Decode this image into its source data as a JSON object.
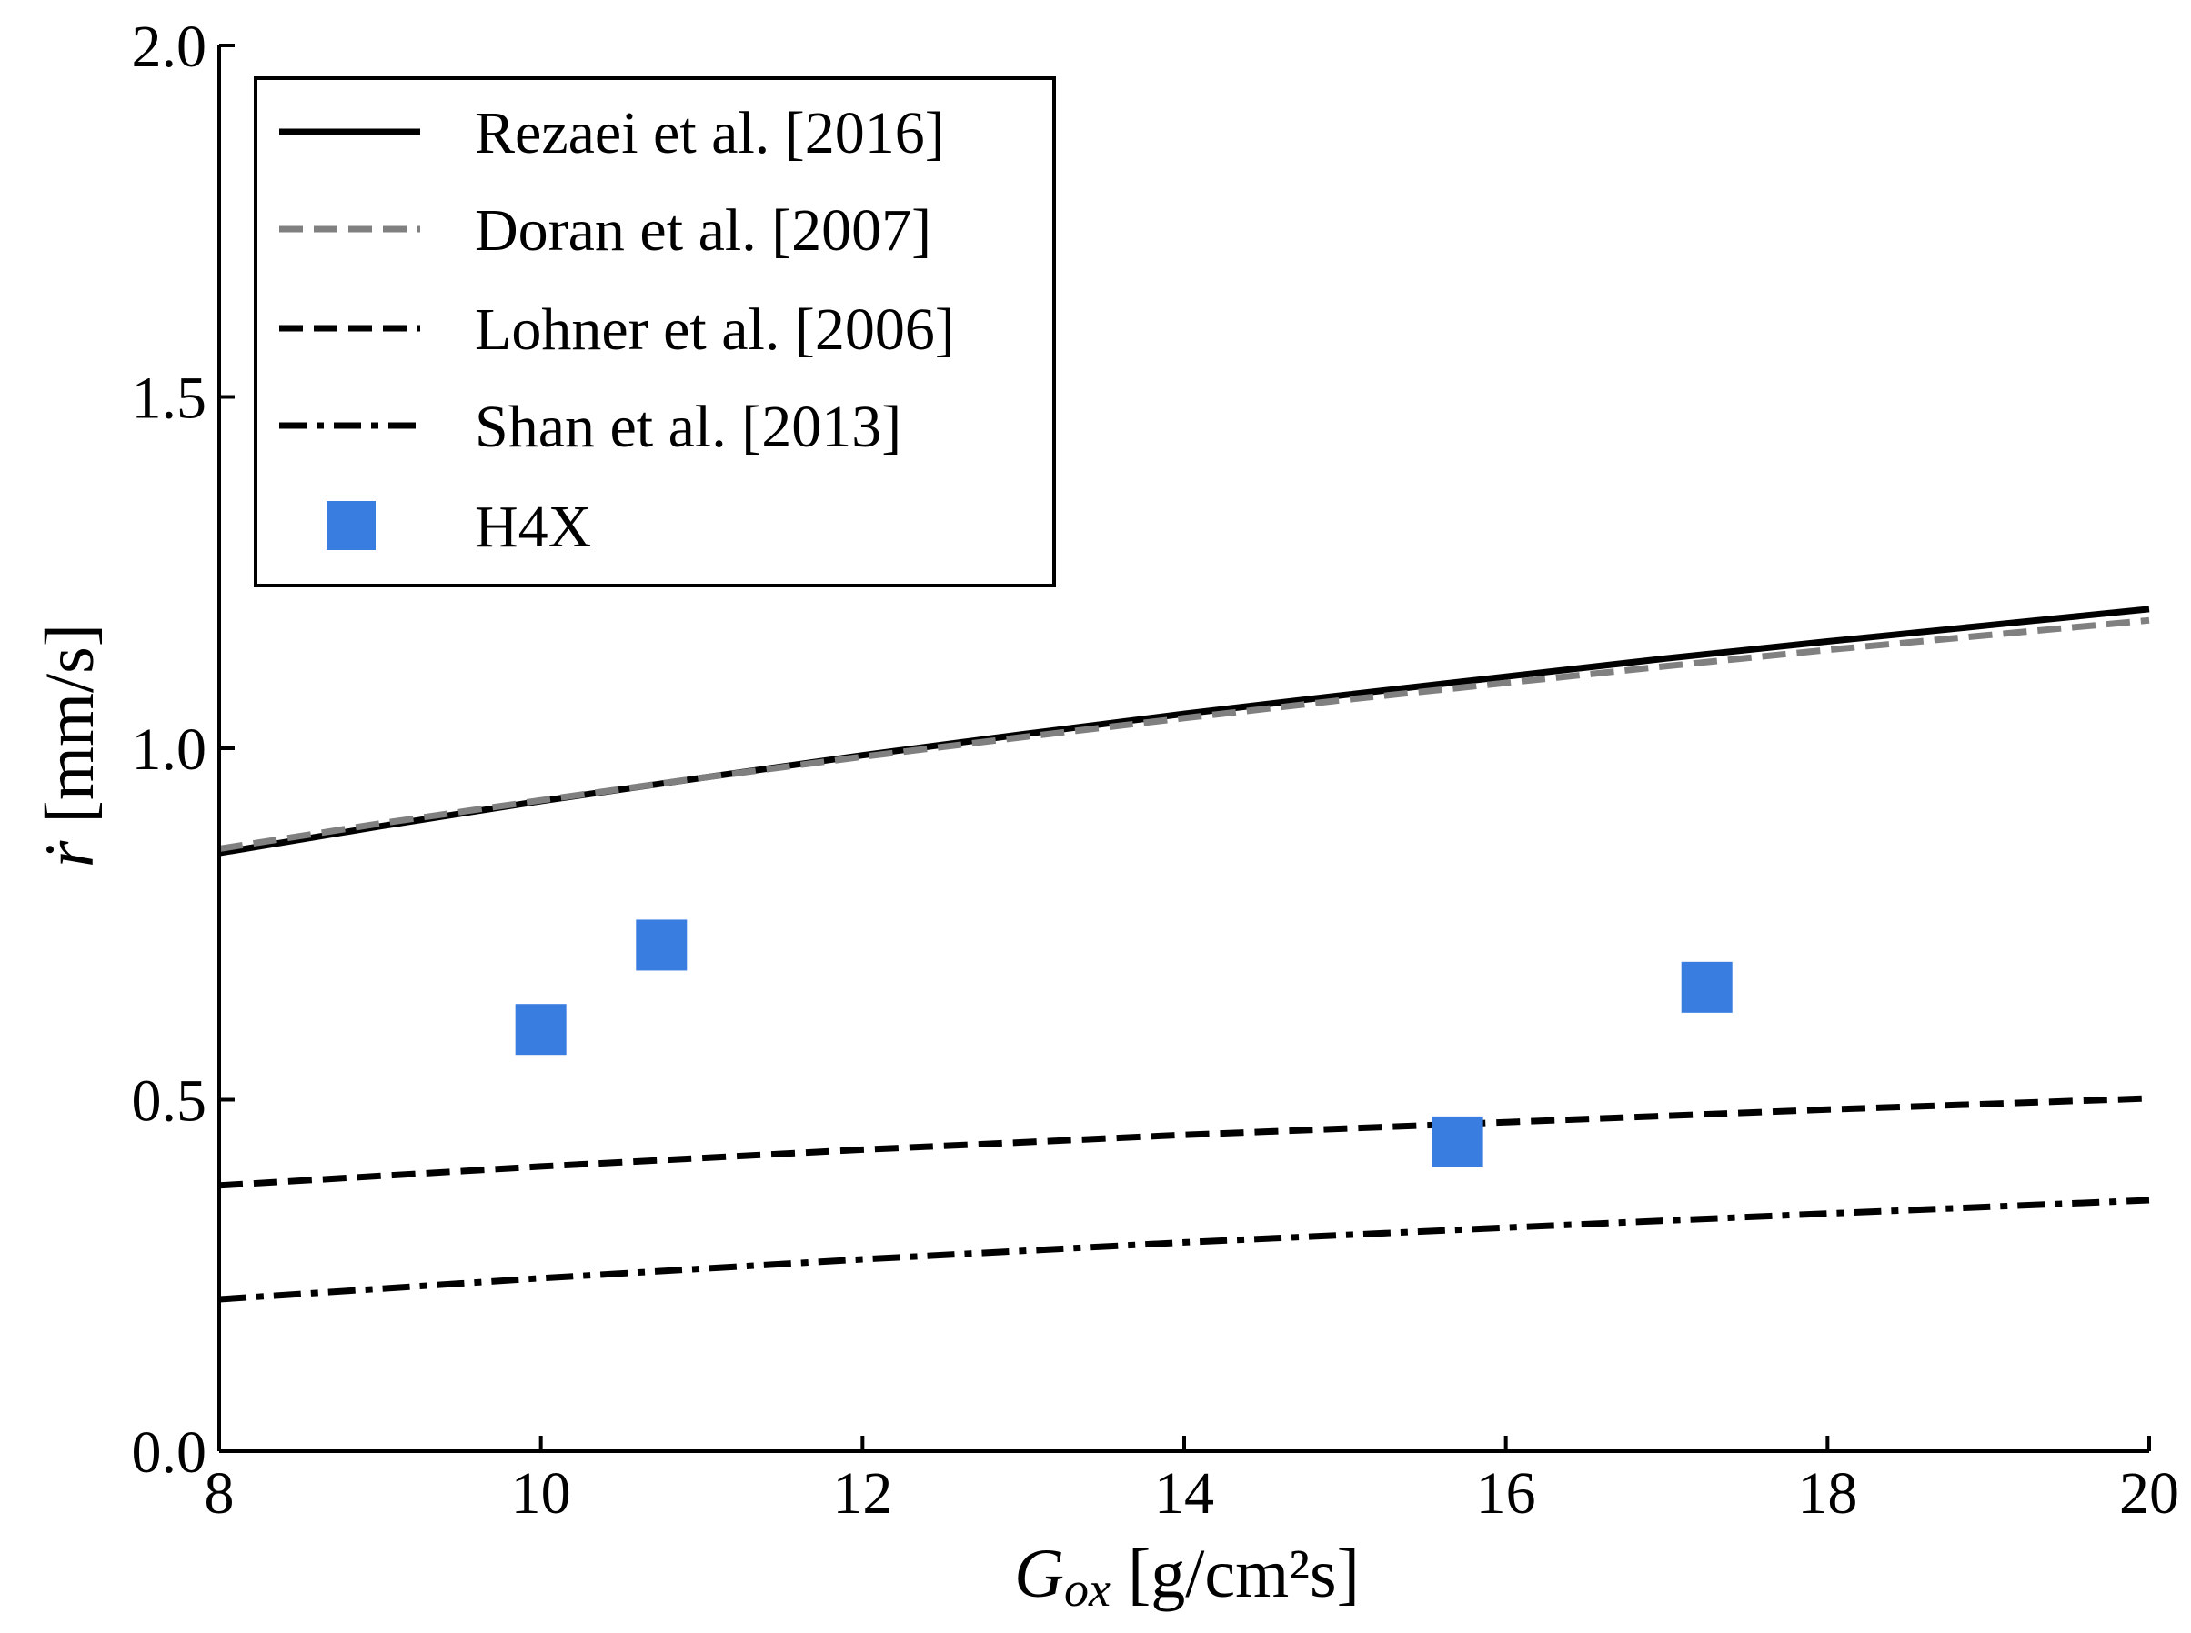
{
  "chart_data": {
    "type": "line",
    "title": "",
    "xlabel": {
      "main": "G",
      "sub": "ox",
      "units": " [g/cm²s]"
    },
    "ylabel": {
      "main": "ṙ",
      "units": " [mm/s]"
    },
    "xlim": [
      8,
      20
    ],
    "ylim": [
      0.0,
      2.0
    ],
    "xticks": [
      8,
      10,
      12,
      14,
      16,
      18,
      20
    ],
    "yticks": [
      0.0,
      0.5,
      1.0,
      1.5,
      2.0
    ],
    "xtick_labels": [
      "8",
      "10",
      "12",
      "14",
      "16",
      "18",
      "20"
    ],
    "ytick_labels": [
      "0.0",
      "0.5",
      "1.0",
      "1.5",
      "2.0"
    ],
    "grid": false,
    "legend_position": "top-left",
    "series": [
      {
        "name": "Rezaei et al. [2016]",
        "kind": "line",
        "style": "solid",
        "color": "#000000",
        "x": [
          8,
          9,
          10,
          11,
          12,
          13,
          14,
          15,
          16,
          17,
          18,
          19,
          20
        ],
        "y": [
          0.851,
          0.889,
          0.925,
          0.958,
          0.99,
          1.02,
          1.049,
          1.076,
          1.102,
          1.128,
          1.152,
          1.175,
          1.198
        ]
      },
      {
        "name": "Doran et al. [2007]",
        "kind": "line",
        "style": "dashed",
        "color": "#808080",
        "x": [
          8,
          9,
          10,
          11,
          12,
          13,
          14,
          15,
          16,
          17,
          18,
          19,
          20
        ],
        "y": [
          0.857,
          0.893,
          0.926,
          0.958,
          0.988,
          1.016,
          1.043,
          1.069,
          1.093,
          1.117,
          1.14,
          1.161,
          1.182
        ]
      },
      {
        "name": "Lohner et al. [2006]",
        "kind": "line",
        "style": "dashed",
        "color": "#000000",
        "x": [
          8,
          10,
          12,
          14,
          16,
          18,
          20
        ],
        "y": [
          0.378,
          0.405,
          0.429,
          0.45,
          0.468,
          0.486,
          0.502
        ]
      },
      {
        "name": "Shan et al. [2013]",
        "kind": "line",
        "style": "dashdot",
        "color": "#000000",
        "x": [
          8,
          10,
          12,
          14,
          16,
          18,
          20
        ],
        "y": [
          0.216,
          0.246,
          0.273,
          0.297,
          0.318,
          0.338,
          0.357
        ]
      },
      {
        "name": "H4X",
        "kind": "scatter",
        "marker": "square",
        "color": "#3a7de0",
        "x": [
          10.0,
          10.75,
          15.7,
          17.25
        ],
        "y": [
          0.6,
          0.72,
          0.44,
          0.66
        ]
      }
    ]
  }
}
